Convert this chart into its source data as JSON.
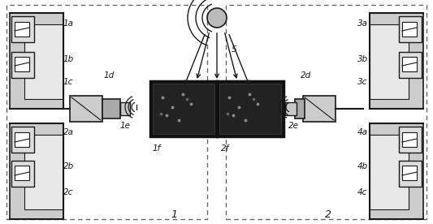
{
  "bg_color": "#ffffff",
  "lc": "#1a1a1a",
  "label1": "1",
  "label2": "2",
  "label_1a": "1a",
  "label_1b": "1b",
  "label_1c": "1c",
  "label_1d": "1d",
  "label_1e": "1e",
  "label_1f": "1f",
  "label_2a": "2a",
  "label_2b": "2b",
  "label_2c": "2c",
  "label_2d": "2d",
  "label_2e": "2e",
  "label_2f": "2f",
  "label_3a": "3a",
  "label_3b": "3b",
  "label_3c": "3c",
  "label_4a": "4a",
  "label_4b": "4b",
  "label_4c": "4c",
  "label_5": "5"
}
